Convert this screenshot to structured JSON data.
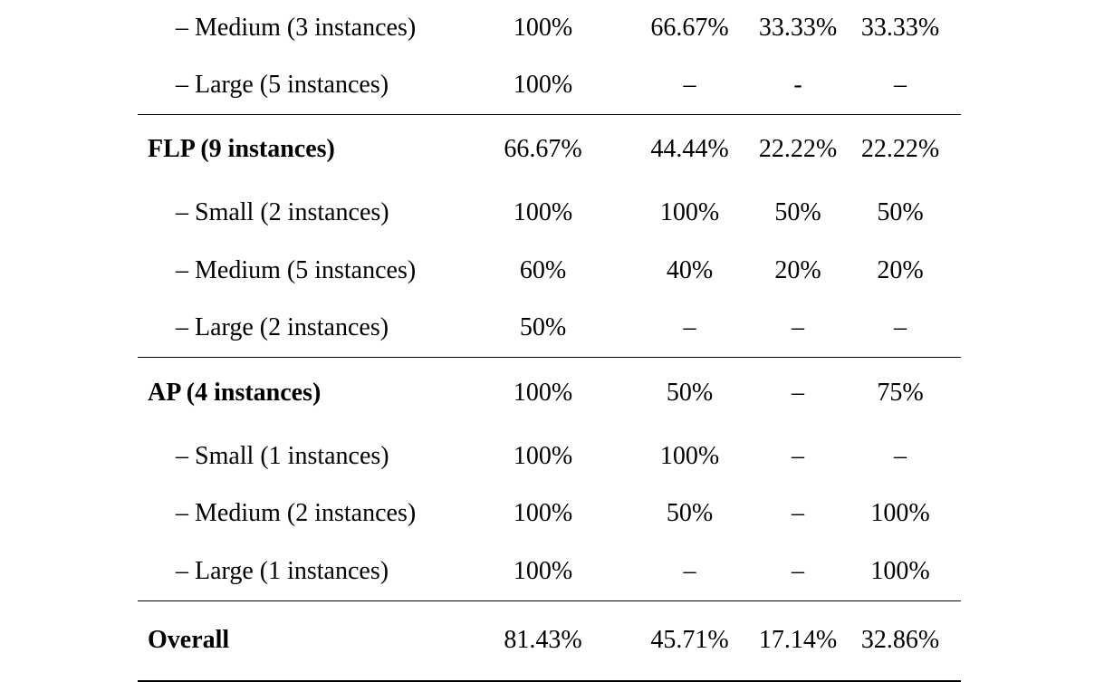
{
  "rows": [
    {
      "kind": "sub",
      "label": "– Medium (3 instances)",
      "values": [
        "100%",
        "66.67%",
        "33.33%",
        "33.33%"
      ]
    },
    {
      "kind": "sub",
      "label": "– Large (5 instances)",
      "values": [
        "100%",
        "–",
        "-",
        "–"
      ]
    },
    {
      "kind": "group",
      "label": "FLP (9 instances)",
      "values": [
        "66.67%",
        "44.44%",
        "22.22%",
        "22.22%"
      ]
    },
    {
      "kind": "sub",
      "label": "– Small (2 instances)",
      "values": [
        "100%",
        "100%",
        "50%",
        "50%"
      ]
    },
    {
      "kind": "sub",
      "label": "– Medium (5 instances)",
      "values": [
        "60%",
        "40%",
        "20%",
        "20%"
      ]
    },
    {
      "kind": "sub",
      "label": "– Large (2 instances)",
      "values": [
        "50%",
        "–",
        "–",
        "–"
      ]
    },
    {
      "kind": "group",
      "label": "AP (4 instances)",
      "values": [
        "100%",
        "50%",
        "–",
        "75%"
      ]
    },
    {
      "kind": "sub",
      "label": "– Small (1 instances)",
      "values": [
        "100%",
        "100%",
        "–",
        "–"
      ]
    },
    {
      "kind": "sub",
      "label": "– Medium (2 instances)",
      "values": [
        "100%",
        "50%",
        "–",
        "100%"
      ]
    },
    {
      "kind": "sub",
      "label": "– Large (1 instances)",
      "values": [
        "100%",
        "–",
        "–",
        "100%"
      ]
    },
    {
      "kind": "overall",
      "label": "Overall",
      "values": [
        "81.43%",
        "45.71%",
        "17.14%",
        "32.86%"
      ]
    }
  ]
}
